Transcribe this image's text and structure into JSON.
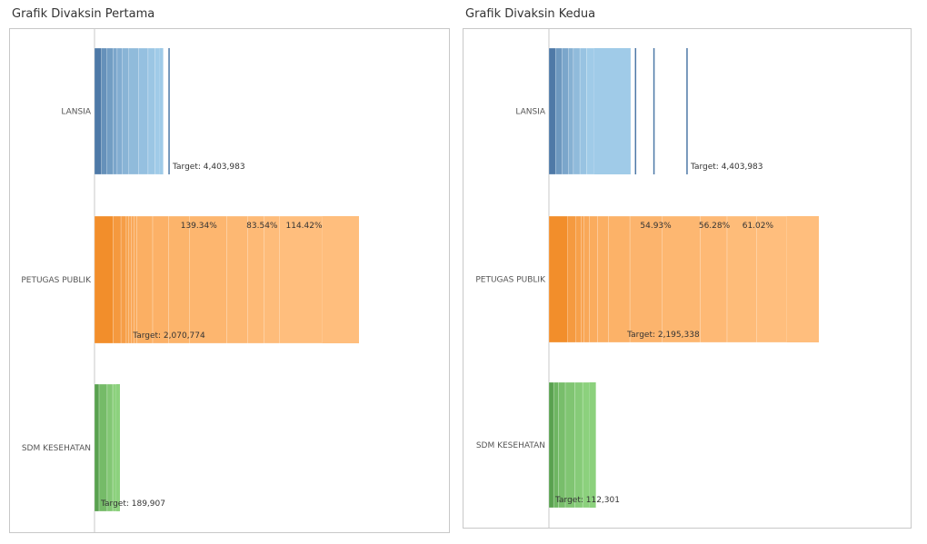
{
  "chart_data": [
    {
      "type": "bar",
      "title": "Grafik Divaksin Pertama",
      "orientation": "horizontal",
      "stacked": true,
      "categories": [
        "LANSIA",
        "PETUGAS PUBLIK",
        "SDM KESEHATAN"
      ],
      "colors": {
        "LANSIA": {
          "dark": "#4e79a7",
          "light": "#a0cbe8"
        },
        "PETUGAS PUBLIK": {
          "dark": "#f28e2b",
          "light": "#ffbe7d"
        },
        "SDM KESEHATAN": {
          "dark": "#59a14f",
          "light": "#8cd17d"
        }
      },
      "bars": [
        {
          "category": "LANSIA",
          "total": 1220000,
          "segments": [
            0.1,
            0.18,
            0.27,
            0.33,
            0.4,
            0.5,
            0.64,
            0.78,
            0.88,
            0.95
          ],
          "ref_lines": [
            1325000
          ],
          "target_label": "Target: 4,403,983",
          "pct_labels": []
        },
        {
          "category": "PETUGAS PUBLIK",
          "total": 4700000,
          "segments": [
            0.07,
            0.1,
            0.12,
            0.13,
            0.14,
            0.15,
            0.16,
            0.22,
            0.28,
            0.36,
            0.5,
            0.58,
            0.64,
            0.7,
            0.86
          ],
          "ref_lines": [],
          "target_label": "Target: 2,070,774",
          "pct_labels": [
            {
              "text": "139.34%",
              "x": 1530000
            },
            {
              "text": "83.54%",
              "x": 2700000
            },
            {
              "text": "114.42%",
              "x": 3400000
            }
          ]
        },
        {
          "category": "SDM KESEHATAN",
          "total": 450000,
          "segments": [
            0.18,
            0.5,
            0.72,
            0.86
          ],
          "ref_lines": [],
          "target_label": "Target: 189,907",
          "pct_labels": []
        }
      ]
    },
    {
      "type": "bar",
      "title": "Grafik Divaksin Kedua",
      "orientation": "horizontal",
      "stacked": true,
      "categories": [
        "LANSIA",
        "PETUGAS PUBLIK",
        "SDM KESEHATAN"
      ],
      "colors": {
        "LANSIA": {
          "dark": "#4e79a7",
          "light": "#a0cbe8"
        },
        "PETUGAS PUBLIK": {
          "dark": "#f28e2b",
          "light": "#ffbe7d"
        },
        "SDM KESEHATAN": {
          "dark": "#59a14f",
          "light": "#8cd17d"
        }
      },
      "bars": [
        {
          "category": "LANSIA",
          "total": 1950000,
          "segments": [
            0.08,
            0.16,
            0.24,
            0.3,
            0.38,
            0.46,
            0.55
          ],
          "ref_lines": [
            2070000,
            2510000,
            3300000
          ],
          "target_label": "Target: 4,403,983",
          "pct_labels": []
        },
        {
          "category": "PETUGAS PUBLIK",
          "total": 6450000,
          "segments": [
            0.07,
            0.1,
            0.12,
            0.13,
            0.15,
            0.18,
            0.22,
            0.3,
            0.42,
            0.56,
            0.66,
            0.77,
            0.88
          ],
          "ref_lines": [],
          "target_label": "Target: 2,195,338",
          "pct_labels": [
            {
              "text": "54.93%",
              "x": 2180000
            },
            {
              "text": "56.28%",
              "x": 3580000
            },
            {
              "text": "61.02%",
              "x": 4620000
            }
          ]
        },
        {
          "category": "SDM KESEHATAN",
          "total": 1120000,
          "segments": [
            0.1,
            0.2,
            0.35,
            0.55,
            0.72,
            0.86
          ],
          "ref_lines": [],
          "target_label": "Target: 112,301",
          "pct_labels": []
        }
      ]
    }
  ]
}
